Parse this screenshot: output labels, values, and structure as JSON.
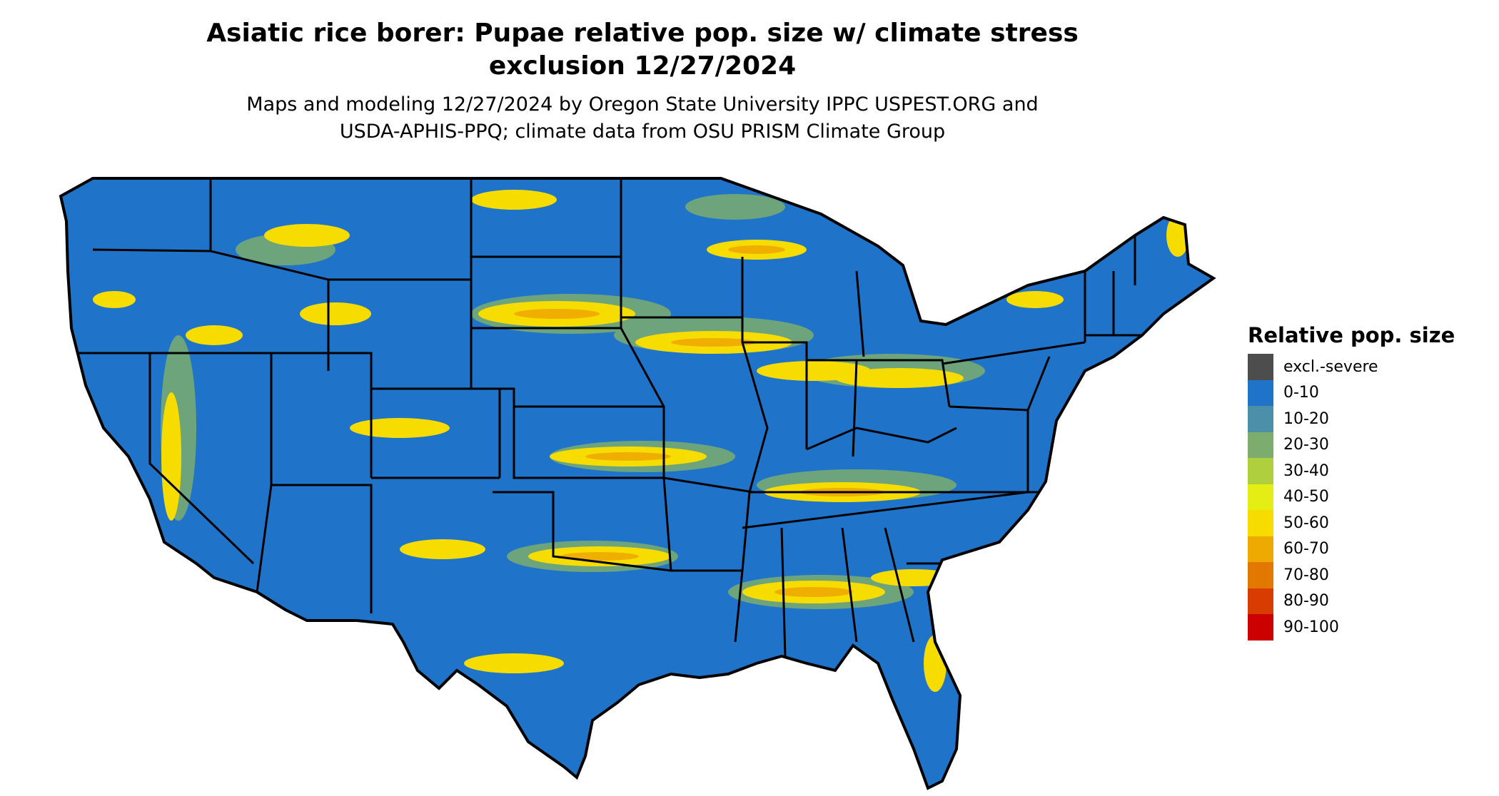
{
  "map": {
    "title_line1": "Asiatic rice borer: Pupae relative pop. size w/ climate stress",
    "title_line2": "exclusion 12/27/2024",
    "subtitle_line1": "Maps and modeling 12/27/2024 by Oregon State University IPPC USPEST.ORG and",
    "subtitle_line2": "USDA-APHIS-PPQ; climate data from OSU PRISM Climate Group",
    "background_color": "#1f74c9",
    "state_border_color": "#000000"
  },
  "legend": {
    "title": "Relative pop. size",
    "items": [
      {
        "label": "excl.-severe",
        "color": "#4d4d4d"
      },
      {
        "label": "0-10",
        "color": "#1f74c9"
      },
      {
        "label": "10-20",
        "color": "#4b8fa8"
      },
      {
        "label": "20-30",
        "color": "#7cad6f"
      },
      {
        "label": "30-40",
        "color": "#afcf3f"
      },
      {
        "label": "40-50",
        "color": "#e4ee14"
      },
      {
        "label": "50-60",
        "color": "#f7dc00"
      },
      {
        "label": "60-70",
        "color": "#eeaa00"
      },
      {
        "label": "70-80",
        "color": "#e37800"
      },
      {
        "label": "80-90",
        "color": "#d93c00"
      },
      {
        "label": "90-100",
        "color": "#cc0000"
      }
    ]
  }
}
